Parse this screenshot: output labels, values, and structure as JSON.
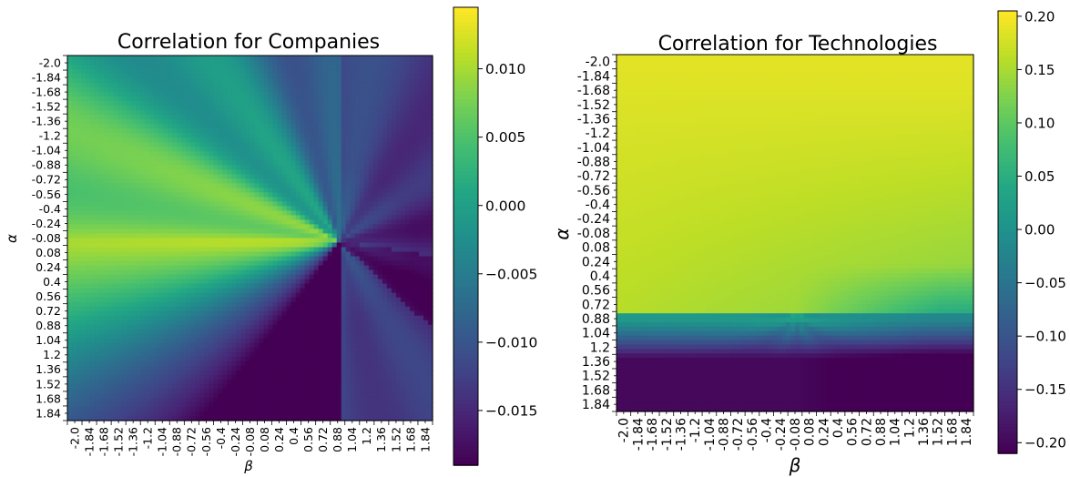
{
  "chart_data": [
    {
      "type": "heatmap",
      "title": "Correlation for Companies",
      "xlabel": "β",
      "ylabel": "α",
      "x_ticks": [
        "-2.0",
        "-1.84",
        "-1.68",
        "-1.52",
        "-1.36",
        "-1.2",
        "-1.04",
        "-0.88",
        "-0.72",
        "-0.56",
        "-0.4",
        "-0.24",
        "-0.08",
        "0.08",
        "0.24",
        "0.4",
        "0.56",
        "0.72",
        "0.88",
        "1.04",
        "1.2",
        "1.36",
        "1.52",
        "1.68",
        "1.84"
      ],
      "y_ticks": [
        "-2.0",
        "-1.84",
        "-1.68",
        "-1.52",
        "-1.36",
        "-1.2",
        "-1.04",
        "-0.88",
        "-0.72",
        "-0.56",
        "-0.4",
        "-0.24",
        "-0.08",
        "0.08",
        "0.24",
        "0.4",
        "0.56",
        "0.72",
        "0.88",
        "1.04",
        "1.2",
        "1.36",
        "1.52",
        "1.68",
        "1.84"
      ],
      "x_range": [
        -2.0,
        2.0
      ],
      "y_range": [
        -2.0,
        2.0
      ],
      "colorbar": {
        "min": -0.019,
        "max": 0.0145,
        "ticks": [
          0.01,
          0.005,
          0.0,
          -0.005,
          -0.01,
          -0.015
        ],
        "tick_labels": [
          "0.010",
          "0.005",
          "0.000",
          "−0.005",
          "−0.010",
          "−0.015"
        ]
      },
      "colormap": "viridis"
    },
    {
      "type": "heatmap",
      "title": "Correlation for Technologies",
      "xlabel": "β",
      "ylabel": "α",
      "x_ticks": [
        "-2.0",
        "-1.84",
        "-1.68",
        "-1.52",
        "-1.36",
        "-1.2",
        "-1.04",
        "-0.88",
        "-0.72",
        "-0.56",
        "-0.4",
        "-0.24",
        "-0.08",
        "0.08",
        "0.24",
        "0.4",
        "0.56",
        "0.72",
        "0.88",
        "1.04",
        "1.2",
        "1.36",
        "1.52",
        "1.68",
        "1.84"
      ],
      "y_ticks": [
        "-2.0",
        "-1.84",
        "-1.68",
        "-1.52",
        "-1.36",
        "-1.2",
        "-1.04",
        "-0.88",
        "-0.72",
        "-0.56",
        "-0.4",
        "-0.24",
        "-0.08",
        "0.08",
        "0.24",
        "0.4",
        "0.56",
        "0.72",
        "0.88",
        "1.04",
        "1.2",
        "1.36",
        "1.52",
        "1.68",
        "1.84"
      ],
      "x_range": [
        -2.0,
        2.0
      ],
      "y_range": [
        -2.0,
        2.0
      ],
      "colorbar": {
        "min": -0.21,
        "max": 0.205,
        "ticks": [
          0.2,
          0.15,
          0.1,
          0.05,
          0.0,
          -0.05,
          -0.1,
          -0.15,
          -0.2
        ],
        "tick_labels": [
          "0.20",
          "0.15",
          "0.10",
          "0.05",
          "0.00",
          "−0.05",
          "−0.10",
          "−0.15",
          "−0.20"
        ]
      },
      "colormap": "viridis"
    }
  ]
}
